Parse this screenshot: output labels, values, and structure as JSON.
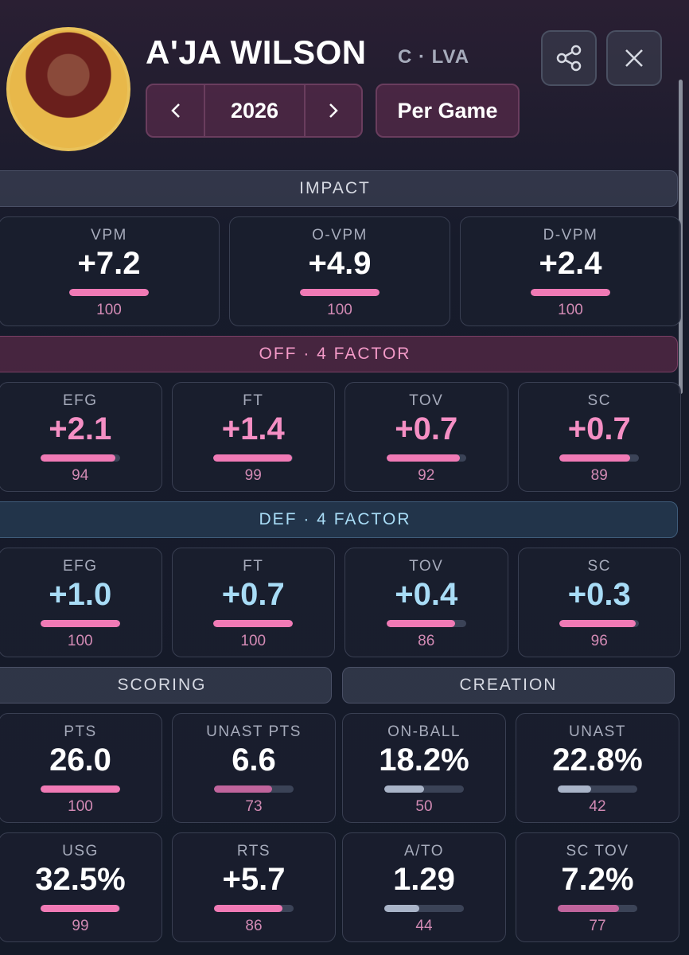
{
  "header": {
    "name": "A'JA WILSON",
    "meta": "C · LVA",
    "season": "2026",
    "mode": "Per Game"
  },
  "panels": [
    {
      "title": "IMPACT",
      "value_color": "#ffffff",
      "stats": [
        {
          "label": "VPM",
          "value": "+7.2",
          "percentile": 100,
          "bar_color": "#f07ab5"
        },
        {
          "label": "O-VPM",
          "value": "+4.9",
          "percentile": 100,
          "bar_color": "#f07ab5"
        },
        {
          "label": "D-VPM",
          "value": "+2.4",
          "percentile": 100,
          "bar_color": "#f07ab5"
        }
      ]
    },
    {
      "title": "OFF · 4 FACTOR",
      "value_color": "#f58fc4",
      "stats": [
        {
          "label": "EFG",
          "value": "+2.1",
          "percentile": 94,
          "bar_color": "#f07ab5"
        },
        {
          "label": "FT",
          "value": "+1.4",
          "percentile": 99,
          "bar_color": "#f07ab5"
        },
        {
          "label": "TOV",
          "value": "+0.7",
          "percentile": 92,
          "bar_color": "#f07ab5"
        },
        {
          "label": "SC",
          "value": "+0.7",
          "percentile": 89,
          "bar_color": "#f07ab5"
        }
      ]
    },
    {
      "title": "DEF · 4 FACTOR",
      "value_color": "#a8dcf6",
      "stats": [
        {
          "label": "EFG",
          "value": "+1.0",
          "percentile": 100,
          "bar_color": "#f07ab5"
        },
        {
          "label": "FT",
          "value": "+0.7",
          "percentile": 100,
          "bar_color": "#f07ab5"
        },
        {
          "label": "TOV",
          "value": "+0.4",
          "percentile": 86,
          "bar_color": "#f07ab5"
        },
        {
          "label": "SC",
          "value": "+0.3",
          "percentile": 96,
          "bar_color": "#f07ab5"
        }
      ]
    }
  ],
  "scoring": {
    "title": "SCORING",
    "value_color": "#ffffff",
    "stats": [
      {
        "label": "PTS",
        "value": "26.0",
        "percentile": 100,
        "bar_color": "#f07ab5"
      },
      {
        "label": "UNAST PTS",
        "value": "6.6",
        "percentile": 73,
        "bar_color": "#c0649c"
      },
      {
        "label": "USG",
        "value": "32.5%",
        "percentile": 99,
        "bar_color": "#f07ab5"
      },
      {
        "label": "RTS",
        "value": "+5.7",
        "percentile": 86,
        "bar_color": "#f07ab5"
      }
    ]
  },
  "creation": {
    "title": "CREATION",
    "value_color": "#ffffff",
    "stats": [
      {
        "label": "ON-BALL",
        "value": "18.2%",
        "percentile": 50,
        "bar_color": "#a9b4c8"
      },
      {
        "label": "UNAST",
        "value": "22.8%",
        "percentile": 42,
        "bar_color": "#a9b4c8"
      },
      {
        "label": "A/TO",
        "value": "1.29",
        "percentile": 44,
        "bar_color": "#a9b4c8"
      },
      {
        "label": "SC TOV",
        "value": "7.2%",
        "percentile": 77,
        "bar_color": "#c0649c"
      }
    ]
  }
}
